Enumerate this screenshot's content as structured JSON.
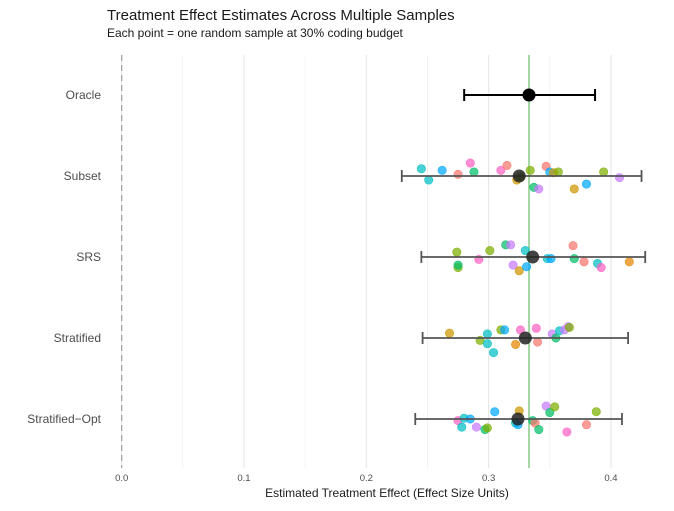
{
  "chart_data": {
    "type": "scatter",
    "title": "Treatment Effect Estimates Across Multiple Samples",
    "subtitle": "Each point = one random sample at 30% coding budget",
    "xlabel": "Estimated Treatment Effect (Effect Size Units)",
    "ylabel": "",
    "xlim": [
      -0.012,
      0.445
    ],
    "x_ticks": [
      0.0,
      0.1,
      0.2,
      0.3,
      0.4
    ],
    "x_tick_labels": [
      "0.0",
      "0.1",
      "0.2",
      "0.3",
      "0.4"
    ],
    "reference_lines": [
      {
        "x": 0.0,
        "style": "dashed",
        "color": "#9e9e9e"
      },
      {
        "x": 0.333,
        "style": "solid",
        "color": "#6cbf6c"
      }
    ],
    "grid": "vertical major and minor",
    "legend": "none",
    "categories": [
      "Oracle",
      "Subset",
      "SRS",
      "Stratified",
      "Stratified−Opt"
    ],
    "summary": [
      {
        "method": "Oracle",
        "mean": 0.333,
        "ci_low": 0.28,
        "ci_high": 0.387
      },
      {
        "method": "Subset",
        "mean": 0.325,
        "ci_low": 0.229,
        "ci_high": 0.425
      },
      {
        "method": "SRS",
        "mean": 0.336,
        "ci_low": 0.245,
        "ci_high": 0.428
      },
      {
        "method": "Stratified",
        "mean": 0.33,
        "ci_low": 0.246,
        "ci_high": 0.414
      },
      {
        "method": "Stratified−Opt",
        "mean": 0.324,
        "ci_low": 0.24,
        "ci_high": 0.409
      }
    ],
    "samples": [
      {
        "method": "Subset",
        "points": [
          {
            "x": 0.251,
            "jitter": 0.05,
            "color": "#00bfc4"
          },
          {
            "x": 0.245,
            "jitter": -0.09,
            "color": "#00bfc4"
          },
          {
            "x": 0.262,
            "jitter": -0.07,
            "color": "#00a9ff"
          },
          {
            "x": 0.275,
            "jitter": -0.02,
            "color": "#f8766d"
          },
          {
            "x": 0.285,
            "jitter": -0.16,
            "color": "#ff61c3"
          },
          {
            "x": 0.288,
            "jitter": -0.05,
            "color": "#00be67"
          },
          {
            "x": 0.31,
            "jitter": -0.07,
            "color": "#ff61c3"
          },
          {
            "x": 0.315,
            "jitter": -0.13,
            "color": "#f8766d"
          },
          {
            "x": 0.323,
            "jitter": 0.05,
            "color": "#cd9600"
          },
          {
            "x": 0.326,
            "jitter": 0.01,
            "color": "#7cae00"
          },
          {
            "x": 0.337,
            "jitter": 0.14,
            "color": "#00be67"
          },
          {
            "x": 0.341,
            "jitter": 0.16,
            "color": "#c77cff"
          },
          {
            "x": 0.347,
            "jitter": -0.12,
            "color": "#f8766d"
          },
          {
            "x": 0.334,
            "jitter": -0.07,
            "color": "#7cae00"
          },
          {
            "x": 0.35,
            "jitter": -0.05,
            "color": "#00a9ff"
          },
          {
            "x": 0.353,
            "jitter": -0.04,
            "color": "#cd9600"
          },
          {
            "x": 0.357,
            "jitter": -0.05,
            "color": "#7cae00"
          },
          {
            "x": 0.37,
            "jitter": 0.16,
            "color": "#cd9600"
          },
          {
            "x": 0.38,
            "jitter": 0.1,
            "color": "#00a9ff"
          },
          {
            "x": 0.394,
            "jitter": -0.05,
            "color": "#7cae00"
          },
          {
            "x": 0.407,
            "jitter": 0.02,
            "color": "#c77cff"
          }
        ]
      },
      {
        "method": "SRS",
        "points": [
          {
            "x": 0.275,
            "jitter": 0.13,
            "color": "#7cae00"
          },
          {
            "x": 0.275,
            "jitter": 0.1,
            "color": "#00be67"
          },
          {
            "x": 0.274,
            "jitter": -0.06,
            "color": "#7cae00"
          },
          {
            "x": 0.292,
            "jitter": 0.03,
            "color": "#ff61c3"
          },
          {
            "x": 0.301,
            "jitter": -0.08,
            "color": "#7cae00"
          },
          {
            "x": 0.314,
            "jitter": -0.15,
            "color": "#00be67"
          },
          {
            "x": 0.318,
            "jitter": -0.15,
            "color": "#c77cff"
          },
          {
            "x": 0.32,
            "jitter": 0.1,
            "color": "#c77cff"
          },
          {
            "x": 0.325,
            "jitter": 0.17,
            "color": "#cd9600"
          },
          {
            "x": 0.33,
            "jitter": -0.08,
            "color": "#00bfc4"
          },
          {
            "x": 0.331,
            "jitter": 0.12,
            "color": "#00a9ff"
          },
          {
            "x": 0.348,
            "jitter": 0.02,
            "color": "#00bfc4"
          },
          {
            "x": 0.351,
            "jitter": 0.02,
            "color": "#00a9ff"
          },
          {
            "x": 0.369,
            "jitter": -0.14,
            "color": "#f8766d"
          },
          {
            "x": 0.37,
            "jitter": 0.02,
            "color": "#00be67"
          },
          {
            "x": 0.378,
            "jitter": 0.06,
            "color": "#f8766d"
          },
          {
            "x": 0.389,
            "jitter": 0.08,
            "color": "#00bfc4"
          },
          {
            "x": 0.392,
            "jitter": 0.13,
            "color": "#ff61c3"
          },
          {
            "x": 0.415,
            "jitter": 0.06,
            "color": "#e58700"
          }
        ]
      },
      {
        "method": "Stratified",
        "points": [
          {
            "x": 0.268,
            "jitter": -0.06,
            "color": "#cd9600"
          },
          {
            "x": 0.293,
            "jitter": 0.03,
            "color": "#7cae00"
          },
          {
            "x": 0.299,
            "jitter": 0.07,
            "color": "#00bfc4"
          },
          {
            "x": 0.299,
            "jitter": -0.05,
            "color": "#00bfc4"
          },
          {
            "x": 0.304,
            "jitter": 0.18,
            "color": "#00bfc4"
          },
          {
            "x": 0.31,
            "jitter": -0.1,
            "color": "#7cae00"
          },
          {
            "x": 0.313,
            "jitter": -0.1,
            "color": "#00a9ff"
          },
          {
            "x": 0.322,
            "jitter": 0.08,
            "color": "#e58700"
          },
          {
            "x": 0.326,
            "jitter": -0.1,
            "color": "#ff61c3"
          },
          {
            "x": 0.34,
            "jitter": 0.05,
            "color": "#f8766d"
          },
          {
            "x": 0.339,
            "jitter": -0.12,
            "color": "#ff61c3"
          },
          {
            "x": 0.352,
            "jitter": -0.05,
            "color": "#c77cff"
          },
          {
            "x": 0.355,
            "jitter": 0.0,
            "color": "#00be67"
          },
          {
            "x": 0.358,
            "jitter": -0.09,
            "color": "#00bfc4"
          },
          {
            "x": 0.362,
            "jitter": -0.1,
            "color": "#c77cff"
          },
          {
            "x": 0.365,
            "jitter": -0.14,
            "color": "#c77cff"
          },
          {
            "x": 0.366,
            "jitter": -0.13,
            "color": "#7cae00"
          }
        ]
      },
      {
        "method": "Stratified−Opt",
        "points": [
          {
            "x": 0.275,
            "jitter": 0.02,
            "color": "#ff61c3"
          },
          {
            "x": 0.278,
            "jitter": 0.1,
            "color": "#00bfc4"
          },
          {
            "x": 0.28,
            "jitter": -0.01,
            "color": "#00bfc4"
          },
          {
            "x": 0.285,
            "jitter": 0.0,
            "color": "#00a9ff"
          },
          {
            "x": 0.29,
            "jitter": 0.1,
            "color": "#c77cff"
          },
          {
            "x": 0.297,
            "jitter": 0.13,
            "color": "#00be67"
          },
          {
            "x": 0.299,
            "jitter": 0.11,
            "color": "#7cae00"
          },
          {
            "x": 0.305,
            "jitter": -0.09,
            "color": "#00a9ff"
          },
          {
            "x": 0.322,
            "jitter": 0.05,
            "color": "#00bfc4"
          },
          {
            "x": 0.324,
            "jitter": 0.07,
            "color": "#00a9ff"
          },
          {
            "x": 0.325,
            "jitter": -0.1,
            "color": "#cd9600"
          },
          {
            "x": 0.336,
            "jitter": 0.02,
            "color": "#00be67"
          },
          {
            "x": 0.338,
            "jitter": 0.05,
            "color": "#f8766d"
          },
          {
            "x": 0.341,
            "jitter": 0.13,
            "color": "#00be67"
          },
          {
            "x": 0.347,
            "jitter": -0.16,
            "color": "#c77cff"
          },
          {
            "x": 0.35,
            "jitter": -0.08,
            "color": "#00be67"
          },
          {
            "x": 0.354,
            "jitter": -0.15,
            "color": "#7cae00"
          },
          {
            "x": 0.364,
            "jitter": 0.16,
            "color": "#ff61c3"
          },
          {
            "x": 0.38,
            "jitter": 0.07,
            "color": "#f8766d"
          },
          {
            "x": 0.388,
            "jitter": -0.09,
            "color": "#7cae00"
          }
        ]
      }
    ]
  }
}
